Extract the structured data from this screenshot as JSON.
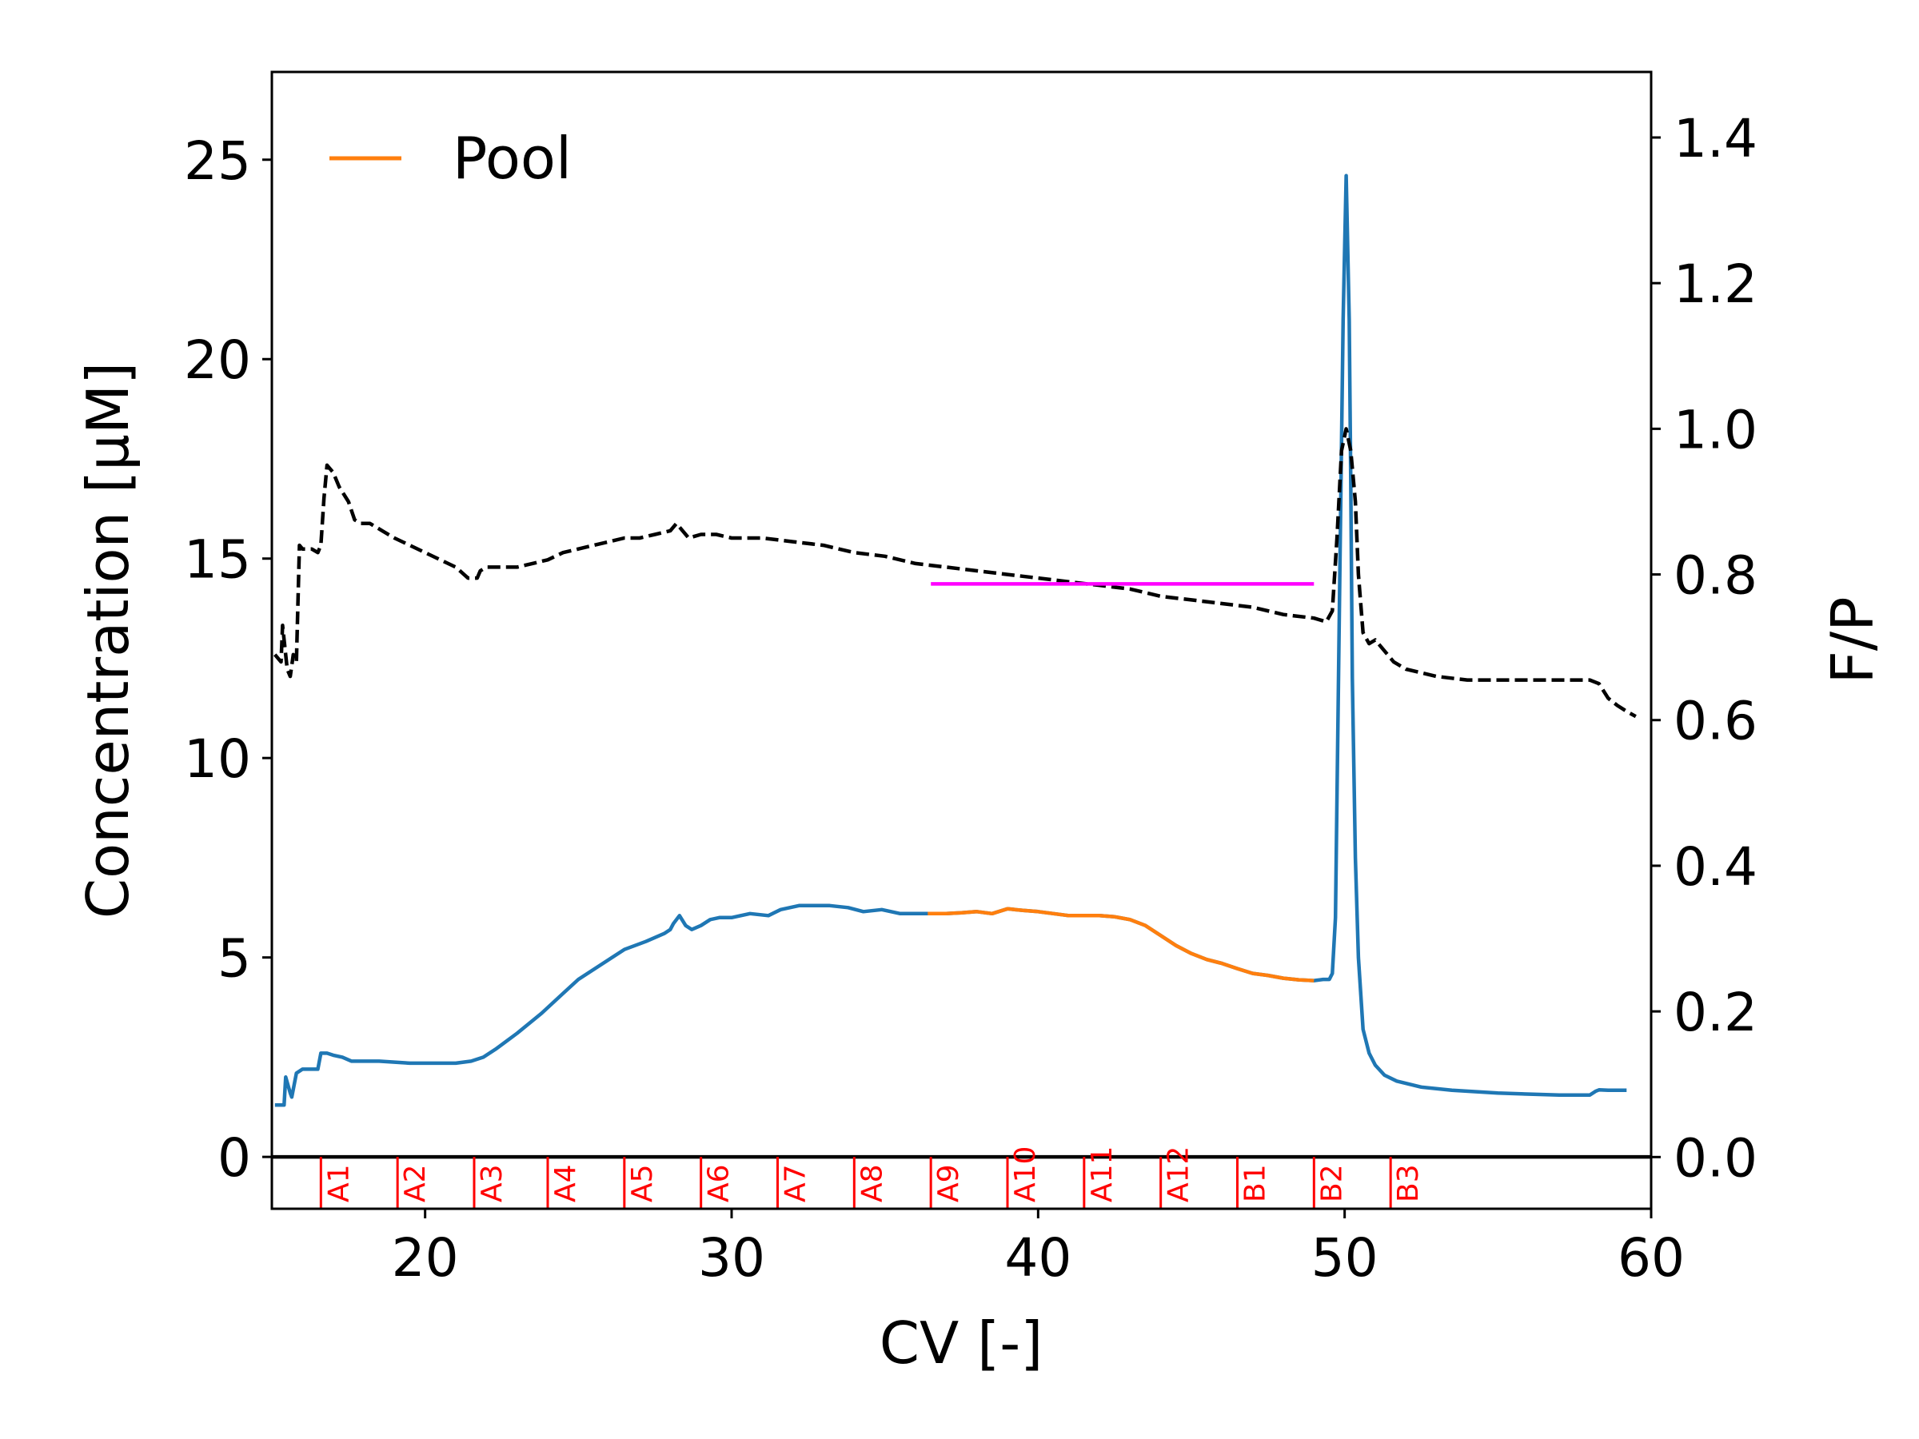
{
  "chart_data": {
    "type": "line",
    "xlabel": "CV [-]",
    "ylabel": "Concentration [μM]",
    "y2label": "F/P",
    "xlim": [
      15.0,
      60.0
    ],
    "ylim": [
      -1.3,
      27.2
    ],
    "y2lim": [
      -0.071,
      1.49
    ],
    "xticks": [
      "20",
      "30",
      "40",
      "50",
      "60"
    ],
    "yticks": [
      "0",
      "5",
      "10",
      "15",
      "20",
      "25"
    ],
    "y2ticks": [
      "0.0",
      "0.2",
      "0.4",
      "0.6",
      "0.8",
      "1.0",
      "1.2",
      "1.4"
    ],
    "legend": {
      "position": "top-left",
      "entries": [
        {
          "label": "Pool",
          "color": "#ff7f0e"
        }
      ]
    },
    "series": [
      {
        "axis": "left",
        "color": "#1f77b4",
        "style": "solid",
        "x": [
          15.1,
          15.4,
          15.45,
          15.6,
          15.65,
          15.8,
          16.0,
          16.5,
          16.6,
          16.8,
          17.0,
          17.3,
          17.6,
          17.8,
          18.5,
          19.5,
          20.5,
          21.0,
          21.5,
          21.9,
          22.3,
          23.0,
          23.8,
          24.5,
          25.0,
          25.7,
          26.5,
          27.2,
          27.8,
          28.0,
          28.1,
          28.3,
          28.5,
          28.7,
          29.0,
          29.3,
          29.6,
          30.0,
          30.6,
          31.2,
          31.6,
          32.2,
          32.7,
          33.2,
          33.8,
          34.3,
          34.9,
          35.5,
          36.0,
          36.4,
          36.6,
          37.0,
          37.5,
          38.0,
          38.5,
          39.0,
          39.5,
          40.0,
          40.5,
          41.0,
          41.5,
          42.0,
          42.5,
          43.0,
          43.5,
          44.0,
          44.5,
          45.0,
          45.5,
          46.0,
          46.5,
          47.0,
          47.5,
          48.0,
          48.5,
          49.0,
          49.3,
          49.5,
          49.6,
          49.7,
          49.75,
          49.85,
          49.95,
          50.05,
          50.15,
          50.2,
          50.25,
          50.35,
          50.45,
          50.6,
          50.8,
          51.0,
          51.3,
          51.7,
          52.5,
          53.5,
          55.0,
          57.0,
          58.0,
          58.2,
          58.3,
          58.6,
          59.2
        ],
        "y": [
          1.3,
          1.3,
          2.0,
          1.6,
          1.5,
          2.1,
          2.2,
          2.2,
          2.6,
          2.6,
          2.55,
          2.5,
          2.4,
          2.4,
          2.4,
          2.35,
          2.35,
          2.35,
          2.4,
          2.5,
          2.7,
          3.1,
          3.6,
          4.1,
          4.45,
          4.8,
          5.2,
          5.4,
          5.6,
          5.7,
          5.85,
          6.05,
          5.8,
          5.7,
          5.8,
          5.95,
          6.0,
          6.0,
          6.1,
          6.05,
          6.2,
          6.3,
          6.3,
          6.3,
          6.25,
          6.15,
          6.2,
          6.1,
          6.1,
          6.1,
          6.1,
          6.1,
          6.12,
          6.15,
          6.1,
          6.22,
          6.18,
          6.15,
          6.1,
          6.05,
          6.05,
          6.05,
          6.02,
          5.95,
          5.8,
          5.55,
          5.3,
          5.1,
          4.95,
          4.85,
          4.72,
          4.6,
          4.55,
          4.48,
          4.44,
          4.42,
          4.45,
          4.45,
          4.6,
          6.0,
          9.0,
          15.0,
          21.0,
          24.6,
          21.0,
          17.0,
          12.0,
          7.5,
          5.0,
          3.2,
          2.6,
          2.3,
          2.05,
          1.9,
          1.75,
          1.67,
          1.6,
          1.55,
          1.55,
          1.65,
          1.68,
          1.67,
          1.67
        ]
      },
      {
        "name": "Pool",
        "axis": "left",
        "color": "#ff7f0e",
        "style": "solid",
        "x": [
          36.4,
          37.0,
          37.5,
          38.0,
          38.5,
          39.0,
          39.5,
          40.0,
          40.5,
          41.0,
          41.5,
          42.0,
          42.5,
          43.0,
          43.5,
          44.0,
          44.5,
          45.0,
          45.5,
          46.0,
          46.5,
          47.0,
          47.5,
          48.0,
          48.5,
          49.0
        ],
        "y": [
          6.1,
          6.1,
          6.12,
          6.15,
          6.1,
          6.22,
          6.18,
          6.15,
          6.1,
          6.05,
          6.05,
          6.05,
          6.02,
          5.95,
          5.8,
          5.55,
          5.3,
          5.1,
          4.95,
          4.85,
          4.72,
          4.6,
          4.55,
          4.48,
          4.44,
          4.42
        ]
      },
      {
        "axis": "right",
        "color": "#000000",
        "style": "dashed",
        "x": [
          15.1,
          15.3,
          15.35,
          15.5,
          15.6,
          15.7,
          15.8,
          15.9,
          16.0,
          16.3,
          16.5,
          16.6,
          16.7,
          16.8,
          17.0,
          17.2,
          17.5,
          17.7,
          17.9,
          18.2,
          18.6,
          19.0,
          19.5,
          20.0,
          20.5,
          21.0,
          21.4,
          21.7,
          21.8,
          22.0,
          22.5,
          23.0,
          23.5,
          24.0,
          24.5,
          25.0,
          25.5,
          26.0,
          26.5,
          27.0,
          27.5,
          28.0,
          28.2,
          28.4,
          28.6,
          29.0,
          29.5,
          30.0,
          31.0,
          32.0,
          33.0,
          34.0,
          35.0,
          36.0,
          37.0,
          38.0,
          39.0,
          40.0,
          41.0,
          42.0,
          43.0,
          44.0,
          45.0,
          46.0,
          47.0,
          48.0,
          49.0,
          49.4,
          49.6,
          49.75,
          49.9,
          50.05,
          50.2,
          50.35,
          50.45,
          50.6,
          50.8,
          51.0,
          51.3,
          51.6,
          52.0,
          52.5,
          53.0,
          54.0,
          55.0,
          56.0,
          57.0,
          58.0,
          58.3,
          58.6,
          58.9,
          59.2,
          59.5
        ],
        "y": [
          0.69,
          0.68,
          0.73,
          0.67,
          0.66,
          0.69,
          0.68,
          0.84,
          0.835,
          0.835,
          0.83,
          0.84,
          0.905,
          0.95,
          0.94,
          0.92,
          0.9,
          0.875,
          0.87,
          0.87,
          0.86,
          0.85,
          0.84,
          0.83,
          0.82,
          0.81,
          0.795,
          0.795,
          0.805,
          0.81,
          0.81,
          0.81,
          0.815,
          0.82,
          0.83,
          0.835,
          0.84,
          0.845,
          0.85,
          0.85,
          0.855,
          0.86,
          0.87,
          0.86,
          0.85,
          0.855,
          0.855,
          0.85,
          0.85,
          0.845,
          0.84,
          0.83,
          0.825,
          0.815,
          0.81,
          0.805,
          0.8,
          0.795,
          0.79,
          0.785,
          0.78,
          0.77,
          0.765,
          0.76,
          0.755,
          0.745,
          0.74,
          0.735,
          0.75,
          0.85,
          0.97,
          1.0,
          0.97,
          0.9,
          0.8,
          0.72,
          0.705,
          0.71,
          0.695,
          0.68,
          0.67,
          0.665,
          0.66,
          0.655,
          0.655,
          0.655,
          0.655,
          0.655,
          0.65,
          0.63,
          0.62,
          0.612,
          0.605
        ]
      },
      {
        "axis": "right",
        "color": "#ff00ff",
        "style": "solid",
        "x": [
          36.5,
          49.0
        ],
        "y": [
          0.787,
          0.787
        ]
      },
      {
        "axis": "left",
        "color": "#000000",
        "style": "solid",
        "x": [
          15.0,
          60.0
        ],
        "y": [
          0.0,
          0.0
        ]
      }
    ],
    "fractions": {
      "color": "#ff0000",
      "labels": [
        "A1",
        "A2",
        "A3",
        "A4",
        "A5",
        "A6",
        "A7",
        "A8",
        "A9",
        "A10",
        "A11",
        "A12",
        "B1",
        "B2",
        "B3"
      ],
      "x": [
        16.6,
        19.1,
        21.6,
        24.0,
        26.5,
        29.0,
        31.5,
        34.0,
        36.5,
        39.0,
        41.5,
        44.0,
        46.5,
        49.0,
        51.5
      ]
    }
  }
}
